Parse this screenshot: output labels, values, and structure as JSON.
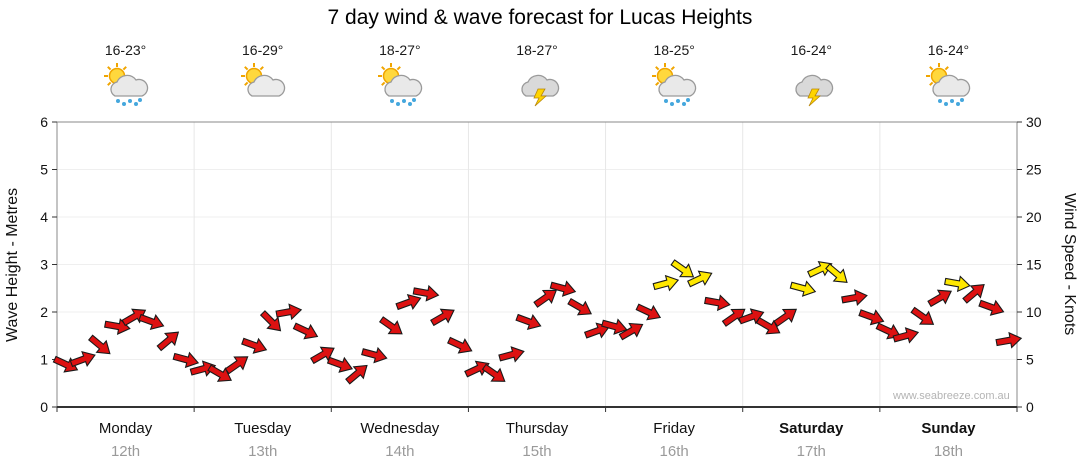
{
  "title": "7 day wind & wave forecast for Lucas Heights",
  "watermark": "www.seabreeze.com.au",
  "axes": {
    "left_label": "Wave Height - Metres",
    "right_label": "Wind Speed - Knots",
    "left_ticks": [
      0,
      1,
      2,
      3,
      4,
      5,
      6
    ],
    "right_ticks": [
      0,
      5,
      10,
      15,
      20,
      25,
      30
    ]
  },
  "days": [
    {
      "name": "Monday",
      "date": "12th",
      "temp": "16-23°",
      "icon": "sun-rain",
      "bold": false
    },
    {
      "name": "Tuesday",
      "date": "13th",
      "temp": "16-29°",
      "icon": "sun-cloud",
      "bold": false
    },
    {
      "name": "Wednesday",
      "date": "14th",
      "temp": "18-27°",
      "icon": "sun-rain",
      "bold": false
    },
    {
      "name": "Thursday",
      "date": "15th",
      "temp": "18-27°",
      "icon": "storm",
      "bold": false
    },
    {
      "name": "Friday",
      "date": "16th",
      "temp": "18-25°",
      "icon": "sun-rain",
      "bold": false
    },
    {
      "name": "Saturday",
      "date": "17th",
      "temp": "16-24°",
      "icon": "storm",
      "bold": true
    },
    {
      "name": "Sunday",
      "date": "18th",
      "temp": "16-24°",
      "icon": "sun-rain",
      "bold": true
    }
  ],
  "chart_data": {
    "type": "wind-arrow-series",
    "title": "7 day wind & wave forecast for Lucas Heights",
    "left_axis": {
      "label": "Wave Height - Metres",
      "ylim": [
        0,
        6
      ]
    },
    "right_axis": {
      "label": "Wind Speed - Knots",
      "ylim": [
        0,
        30
      ]
    },
    "units": {
      "k": "wind speed in knots",
      "d": "arrow rotation degrees",
      "c": "r=red (lighter wind), y=yellow (stronger wind)"
    },
    "points_per_day": 8,
    "arrow_colors": {
      "r": "#dd1111",
      "y": "#ffe800"
    },
    "days": [
      {
        "day": "Monday",
        "points": [
          {
            "k": 4.5,
            "d": 25,
            "c": "r"
          },
          {
            "k": 5.0,
            "d": -20,
            "c": "r"
          },
          {
            "k": 6.5,
            "d": 40,
            "c": "r"
          },
          {
            "k": 8.5,
            "d": 10,
            "c": "r"
          },
          {
            "k": 9.5,
            "d": -30,
            "c": "r"
          },
          {
            "k": 9.0,
            "d": 20,
            "c": "r"
          },
          {
            "k": 7.0,
            "d": -40,
            "c": "r"
          },
          {
            "k": 5.0,
            "d": 15,
            "c": "r"
          }
        ]
      },
      {
        "day": "Tuesday",
        "points": [
          {
            "k": 4.0,
            "d": -15,
            "c": "r"
          },
          {
            "k": 3.5,
            "d": 30,
            "c": "r"
          },
          {
            "k": 4.5,
            "d": -35,
            "c": "r"
          },
          {
            "k": 6.5,
            "d": 20,
            "c": "r"
          },
          {
            "k": 9.0,
            "d": 45,
            "c": "r"
          },
          {
            "k": 10.0,
            "d": -10,
            "c": "r"
          },
          {
            "k": 8.0,
            "d": 25,
            "c": "r"
          },
          {
            "k": 5.5,
            "d": -30,
            "c": "r"
          }
        ]
      },
      {
        "day": "Wednesday",
        "points": [
          {
            "k": 4.5,
            "d": 20,
            "c": "r"
          },
          {
            "k": 3.5,
            "d": -40,
            "c": "r"
          },
          {
            "k": 5.5,
            "d": 15,
            "c": "r"
          },
          {
            "k": 8.5,
            "d": 35,
            "c": "r"
          },
          {
            "k": 11.0,
            "d": -20,
            "c": "r"
          },
          {
            "k": 12.0,
            "d": 10,
            "c": "r"
          },
          {
            "k": 9.5,
            "d": -30,
            "c": "r"
          },
          {
            "k": 6.5,
            "d": 25,
            "c": "r"
          }
        ]
      },
      {
        "day": "Thursday",
        "points": [
          {
            "k": 4.0,
            "d": -25,
            "c": "r"
          },
          {
            "k": 3.5,
            "d": 35,
            "c": "r"
          },
          {
            "k": 5.5,
            "d": -15,
            "c": "r"
          },
          {
            "k": 9.0,
            "d": 20,
            "c": "r"
          },
          {
            "k": 11.5,
            "d": -35,
            "c": "r"
          },
          {
            "k": 12.5,
            "d": 15,
            "c": "r"
          },
          {
            "k": 10.5,
            "d": 30,
            "c": "r"
          },
          {
            "k": 8.0,
            "d": -20,
            "c": "r"
          }
        ]
      },
      {
        "day": "Friday",
        "points": [
          {
            "k": 8.5,
            "d": 15,
            "c": "r"
          },
          {
            "k": 8.0,
            "d": -30,
            "c": "r"
          },
          {
            "k": 10.0,
            "d": 25,
            "c": "r"
          },
          {
            "k": 13.0,
            "d": -15,
            "c": "y"
          },
          {
            "k": 14.5,
            "d": 35,
            "c": "y"
          },
          {
            "k": 13.5,
            "d": -25,
            "c": "y"
          },
          {
            "k": 11.0,
            "d": 10,
            "c": "r"
          },
          {
            "k": 9.5,
            "d": -35,
            "c": "r"
          }
        ]
      },
      {
        "day": "Saturday",
        "points": [
          {
            "k": 9.5,
            "d": -20,
            "c": "r"
          },
          {
            "k": 8.5,
            "d": 30,
            "c": "r"
          },
          {
            "k": 9.5,
            "d": -35,
            "c": "r"
          },
          {
            "k": 12.5,
            "d": 15,
            "c": "y"
          },
          {
            "k": 14.5,
            "d": -25,
            "c": "y"
          },
          {
            "k": 14.0,
            "d": 40,
            "c": "y"
          },
          {
            "k": 11.5,
            "d": -10,
            "c": "r"
          },
          {
            "k": 9.5,
            "d": 20,
            "c": "r"
          }
        ]
      },
      {
        "day": "Sunday",
        "points": [
          {
            "k": 8.0,
            "d": 25,
            "c": "r"
          },
          {
            "k": 7.5,
            "d": -15,
            "c": "r"
          },
          {
            "k": 9.5,
            "d": 35,
            "c": "r"
          },
          {
            "k": 11.5,
            "d": -30,
            "c": "r"
          },
          {
            "k": 13.0,
            "d": 10,
            "c": "y"
          },
          {
            "k": 12.0,
            "d": -40,
            "c": "r"
          },
          {
            "k": 10.5,
            "d": 20,
            "c": "r"
          },
          {
            "k": 7.0,
            "d": -10,
            "c": "r"
          }
        ]
      }
    ]
  }
}
